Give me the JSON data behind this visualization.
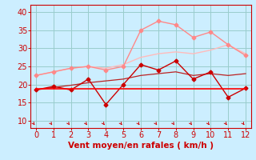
{
  "xlabel": "Vent moyen/en rafales ( km/h )",
  "x": [
    0,
    1,
    2,
    3,
    4,
    5,
    6,
    7,
    8,
    9,
    10,
    11,
    12
  ],
  "line_smooth": {
    "y": [
      22.5,
      23.5,
      24.5,
      25.0,
      24.5,
      25.5,
      27.5,
      28.5,
      29.0,
      28.5,
      29.5,
      31.0,
      28.5
    ],
    "color": "#ffbbbb",
    "lw": 1.0
  },
  "line_rafales": {
    "y": [
      22.5,
      23.5,
      24.5,
      25.0,
      24.0,
      25.0,
      35.0,
      37.5,
      36.5,
      33.0,
      34.5,
      31.0,
      28.0
    ],
    "color": "#ff8888",
    "lw": 1.0,
    "marker": "D",
    "ms": 2.5
  },
  "line_trend": {
    "y": [
      18.5,
      19.2,
      19.8,
      20.5,
      21.0,
      21.5,
      22.5,
      23.0,
      23.5,
      22.5,
      23.0,
      22.5,
      23.0
    ],
    "color": "#bb2222",
    "lw": 0.9
  },
  "line_moyen": {
    "y": [
      18.5,
      19.5,
      18.5,
      21.5,
      14.5,
      20.0,
      25.5,
      24.0,
      26.5,
      21.5,
      23.5,
      16.5,
      19.0
    ],
    "color": "#cc0000",
    "lw": 1.0,
    "marker": "D",
    "ms": 2.5
  },
  "line_flat": {
    "y": [
      18.8,
      18.8,
      18.8,
      18.8,
      18.8,
      18.8,
      18.8,
      18.8,
      18.8,
      18.8,
      18.8,
      18.8,
      18.8
    ],
    "color": "#ff0000",
    "lw": 1.2
  },
  "ylim": [
    8,
    42
  ],
  "xlim": [
    -0.3,
    12.3
  ],
  "yticks": [
    10,
    15,
    20,
    25,
    30,
    35,
    40
  ],
  "xticks": [
    0,
    1,
    2,
    3,
    4,
    5,
    6,
    7,
    8,
    9,
    10,
    11,
    12
  ],
  "bg_color": "#cceeff",
  "grid_color": "#99cccc",
  "tick_color": "#cc0000",
  "label_color": "#cc0000",
  "xlabel_fontsize": 7.5,
  "tick_fontsize": 7
}
